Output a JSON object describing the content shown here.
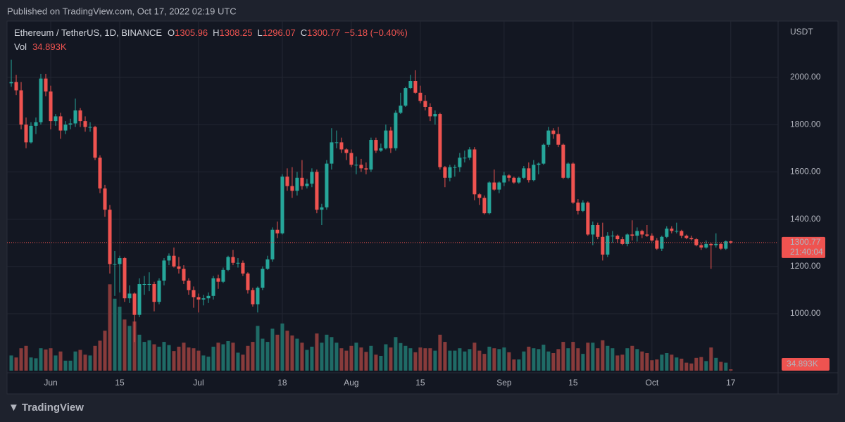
{
  "chart_data": {
    "type": "candlestick",
    "published": "Published on TradingView.com, Oct 17, 2022 02:19 UTC",
    "symbol": "Ethereum / TetherUS, 1D, BINANCE",
    "ohlc_labels": [
      "O",
      "H",
      "L",
      "C"
    ],
    "change_label": "−5.18 (−0.40%)",
    "volume_title": "Vol",
    "vol_label": "34.893K",
    "currency": "USDT",
    "countdown": "21:40:04",
    "brand": "TradingView",
    "up_color": "#26a69a",
    "down_color": "#ef5350",
    "volume_up_color": "#1f6b66",
    "volume_down_color": "#883b3b",
    "grid": true,
    "ylim": [
      750,
      2238
    ],
    "yticks": [
      {
        "value": 1000,
        "label": "1000.00"
      },
      {
        "value": 1200,
        "label": "1200.00"
      },
      {
        "value": 1400,
        "label": "1400.00"
      },
      {
        "value": 1600,
        "label": "1600.00"
      },
      {
        "value": 1800,
        "label": "1800.00"
      },
      {
        "value": 2000,
        "label": "2000.00"
      }
    ],
    "xlim": [
      -0.86,
      155.6
    ],
    "xticks": [
      {
        "value": 8,
        "label": "Jun"
      },
      {
        "value": 22,
        "label": "15"
      },
      {
        "value": 38,
        "label": "Jul"
      },
      {
        "value": 55,
        "label": "18"
      },
      {
        "value": 69,
        "label": "Aug"
      },
      {
        "value": 83,
        "label": "15"
      },
      {
        "value": 100,
        "label": "Sep"
      },
      {
        "value": 114,
        "label": "15"
      },
      {
        "value": 130,
        "label": "Oct"
      },
      {
        "value": 146,
        "label": "17"
      }
    ],
    "volume_ylim": [
      0,
      8800
    ],
    "open": [
      1975,
      1980,
      1945,
      1800,
      1725,
      1795,
      1810,
      1995,
      1940,
      1815,
      1835,
      1775,
      1800,
      1805,
      1860,
      1815,
      1790,
      1790,
      1660,
      1530,
      1440,
      1210,
      1210,
      1235,
      1065,
      1085,
      995,
      1125,
      1125,
      1125,
      1050,
      1140,
      1225,
      1245,
      1200,
      1190,
      1140,
      1100,
      1070,
      1060,
      1065,
      1075,
      1150,
      1135,
      1185,
      1240,
      1215,
      1215,
      1170,
      1100,
      1040,
      1110,
      1190,
      1230,
      1355,
      1340,
      1580,
      1540,
      1520,
      1575,
      1540,
      1550,
      1600,
      1440,
      1450,
      1635,
      1725,
      1725,
      1695,
      1680,
      1630,
      1630,
      1615,
      1610,
      1735,
      1690,
      1700,
      1775,
      1700,
      1850,
      1880,
      1955,
      1985,
      1935,
      1900,
      1875,
      1835,
      1845,
      1620,
      1575,
      1620,
      1620,
      1660,
      1660,
      1695,
      1505,
      1490,
      1425,
      1555,
      1525,
      1555,
      1585,
      1575,
      1555,
      1575,
      1615,
      1565,
      1630,
      1635,
      1715,
      1775,
      1760,
      1715,
      1575,
      1635,
      1470,
      1435,
      1470,
      1335,
      1375,
      1325,
      1250,
      1330,
      1330,
      1315,
      1295,
      1335,
      1330,
      1350,
      1335,
      1330,
      1310,
      1275,
      1325,
      1360,
      1350,
      1350,
      1330,
      1320,
      1315,
      1290,
      1280,
      1295,
      1290,
      1295,
      1275,
      1305.96
    ],
    "high": [
      2075,
      2010,
      1980,
      1830,
      1810,
      1830,
      2015,
      2015,
      1965,
      1845,
      1850,
      1815,
      1825,
      1910,
      1870,
      1835,
      1810,
      1795,
      1670,
      1545,
      1460,
      1265,
      1245,
      1240,
      1120,
      1090,
      1150,
      1160,
      1175,
      1135,
      1150,
      1235,
      1255,
      1280,
      1240,
      1205,
      1150,
      1115,
      1085,
      1080,
      1090,
      1160,
      1165,
      1195,
      1245,
      1270,
      1235,
      1225,
      1175,
      1110,
      1115,
      1200,
      1245,
      1365,
      1390,
      1590,
      1615,
      1620,
      1600,
      1650,
      1570,
      1615,
      1610,
      1465,
      1650,
      1785,
      1775,
      1745,
      1700,
      1695,
      1665,
      1655,
      1640,
      1745,
      1745,
      1720,
      1800,
      1790,
      1860,
      1935,
      1960,
      2010,
      2030,
      1965,
      1925,
      1890,
      1860,
      1850,
      1625,
      1630,
      1630,
      1680,
      1690,
      1705,
      1705,
      1510,
      1500,
      1560,
      1610,
      1560,
      1600,
      1590,
      1580,
      1580,
      1625,
      1640,
      1650,
      1640,
      1720,
      1790,
      1785,
      1790,
      1720,
      1640,
      1640,
      1485,
      1480,
      1475,
      1390,
      1385,
      1385,
      1345,
      1350,
      1335,
      1325,
      1340,
      1395,
      1365,
      1355,
      1375,
      1340,
      1320,
      1330,
      1370,
      1370,
      1385,
      1355,
      1335,
      1330,
      1320,
      1300,
      1310,
      1300,
      1340,
      1300,
      1310,
      1308.25
    ],
    "low": [
      1960,
      1925,
      1780,
      1700,
      1720,
      1760,
      1800,
      1920,
      1780,
      1795,
      1740,
      1760,
      1780,
      1790,
      1790,
      1770,
      1770,
      1650,
      1510,
      1410,
      1170,
      1075,
      1090,
      1050,
      1045,
      880,
      985,
      1080,
      1095,
      1010,
      1040,
      1120,
      1205,
      1195,
      1170,
      1125,
      1080,
      1025,
      1005,
      1035,
      1045,
      1060,
      1105,
      1130,
      1180,
      1205,
      1195,
      1160,
      1085,
      1030,
      1005,
      1100,
      1185,
      1220,
      1320,
      1335,
      1520,
      1490,
      1500,
      1525,
      1530,
      1535,
      1425,
      1375,
      1440,
      1610,
      1700,
      1680,
      1650,
      1620,
      1590,
      1600,
      1590,
      1600,
      1680,
      1685,
      1695,
      1680,
      1690,
      1845,
      1875,
      1950,
      1930,
      1890,
      1860,
      1815,
      1800,
      1610,
      1535,
      1560,
      1580,
      1600,
      1640,
      1650,
      1480,
      1460,
      1420,
      1420,
      1520,
      1510,
      1540,
      1560,
      1550,
      1550,
      1570,
      1555,
      1560,
      1590,
      1630,
      1705,
      1740,
      1705,
      1570,
      1570,
      1465,
      1420,
      1430,
      1330,
      1290,
      1315,
      1225,
      1240,
      1300,
      1300,
      1290,
      1285,
      1310,
      1305,
      1320,
      1325,
      1305,
      1270,
      1265,
      1320,
      1340,
      1340,
      1320,
      1315,
      1310,
      1285,
      1270,
      1275,
      1190,
      1280,
      1270,
      1270,
      1296.07
    ],
    "close": [
      1980,
      1945,
      1800,
      1725,
      1795,
      1810,
      1995,
      1940,
      1815,
      1835,
      1775,
      1800,
      1805,
      1860,
      1815,
      1790,
      1790,
      1660,
      1530,
      1440,
      1210,
      1210,
      1235,
      1065,
      1085,
      995,
      1125,
      1125,
      1125,
      1050,
      1140,
      1225,
      1245,
      1200,
      1190,
      1140,
      1100,
      1070,
      1060,
      1065,
      1075,
      1150,
      1135,
      1185,
      1240,
      1215,
      1215,
      1170,
      1100,
      1040,
      1110,
      1190,
      1230,
      1355,
      1340,
      1580,
      1540,
      1520,
      1575,
      1540,
      1550,
      1600,
      1440,
      1450,
      1635,
      1725,
      1725,
      1695,
      1680,
      1630,
      1630,
      1615,
      1610,
      1735,
      1690,
      1700,
      1775,
      1700,
      1850,
      1880,
      1955,
      1985,
      1935,
      1900,
      1875,
      1835,
      1845,
      1620,
      1575,
      1620,
      1620,
      1660,
      1660,
      1695,
      1505,
      1490,
      1425,
      1555,
      1525,
      1555,
      1585,
      1575,
      1555,
      1575,
      1615,
      1565,
      1630,
      1635,
      1715,
      1775,
      1760,
      1715,
      1575,
      1635,
      1470,
      1435,
      1470,
      1335,
      1375,
      1325,
      1250,
      1330,
      1330,
      1315,
      1295,
      1335,
      1330,
      1350,
      1335,
      1330,
      1310,
      1275,
      1325,
      1360,
      1350,
      1350,
      1330,
      1320,
      1315,
      1290,
      1280,
      1295,
      1290,
      1295,
      1275,
      1305.96,
      1300.77
    ],
    "volume": [
      380,
      330,
      560,
      620,
      330,
      310,
      560,
      530,
      560,
      380,
      480,
      250,
      250,
      480,
      520,
      400,
      380,
      620,
      750,
      1000,
      2160,
      1800,
      1600,
      1280,
      1120,
      1230,
      900,
      720,
      760,
      660,
      600,
      720,
      640,
      490,
      600,
      700,
      580,
      560,
      500,
      380,
      350,
      600,
      700,
      660,
      740,
      700,
      450,
      400,
      620,
      720,
      1120,
      800,
      720,
      1050,
      900,
      1180,
      1000,
      880,
      800,
      700,
      520,
      600,
      930,
      700,
      900,
      840,
      700,
      560,
      500,
      620,
      700,
      580,
      470,
      620,
      400,
      370,
      660,
      580,
      840,
      690,
      620,
      560,
      460,
      580,
      560,
      560,
      500,
      900,
      720,
      500,
      500,
      560,
      480,
      540,
      700,
      500,
      420,
      600,
      560,
      540,
      580,
      460,
      280,
      280,
      480,
      600,
      560,
      540,
      650,
      480,
      440,
      540,
      720,
      560,
      720,
      560,
      420,
      700,
      700,
      560,
      760,
      620,
      560,
      380,
      400,
      560,
      620,
      540,
      480,
      440,
      260,
      280,
      400,
      440,
      400,
      330,
      300,
      200,
      180,
      320,
      340,
      240,
      580,
      320,
      220,
      200,
      34.893
    ]
  }
}
